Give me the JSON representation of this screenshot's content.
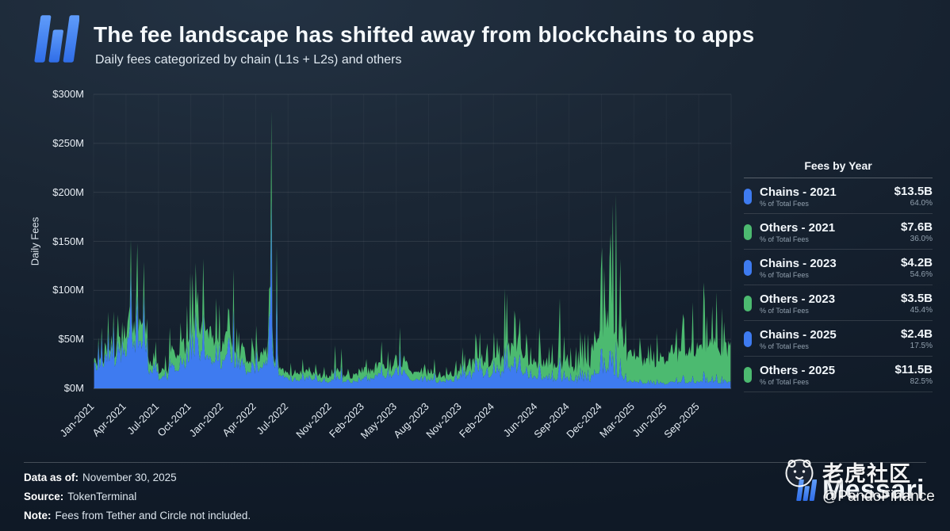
{
  "header": {
    "title": "The fee landscape has shifted away from blockchains to apps",
    "subtitle": "Daily fees categorized by chain (L1s + L2s) and others"
  },
  "colors": {
    "chains": "#3e7bf0",
    "others": "#4cba70"
  },
  "legend": {
    "title": "Fees by Year",
    "sub_label": "% of Total Fees",
    "rows": [
      {
        "label": "Chains - 2021",
        "color": "blue",
        "value": "$13.5B",
        "pct": "64.0%"
      },
      {
        "label": "Others - 2021",
        "color": "green",
        "value": "$7.6B",
        "pct": "36.0%"
      },
      {
        "label": "Chains - 2023",
        "color": "blue",
        "value": "$4.2B",
        "pct": "54.6%"
      },
      {
        "label": "Others - 2023",
        "color": "green",
        "value": "$3.5B",
        "pct": "45.4%"
      },
      {
        "label": "Chains - 2025",
        "color": "blue",
        "value": "$2.4B",
        "pct": "17.5%"
      },
      {
        "label": "Others - 2025",
        "color": "green",
        "value": "$11.5B",
        "pct": "82.5%"
      }
    ]
  },
  "footer": {
    "data_as_of_label": "Data as of:",
    "data_as_of": "November 30, 2025",
    "source_label": "Source:",
    "source": "TokenTerminal",
    "note_label": "Note:",
    "note": "Fees from Tether and Circle not included.",
    "brand": "Messari"
  },
  "watermark": {
    "name": "老虎社区",
    "handle": "@PandoFinance"
  },
  "chart_data": {
    "type": "area",
    "stacked": true,
    "title": "The fee landscape has shifted away from blockchains to apps",
    "subtitle": "Daily fees categorized by chain (L1s + L2s) and others",
    "ylabel": "Daily Fees",
    "xlabel": "",
    "ylim": [
      0,
      300
    ],
    "grid": true,
    "legend_position": "right",
    "series_names": [
      "Chains (L1s + L2s)",
      "Others (apps)"
    ],
    "y_ticks": [
      {
        "label": "$0M",
        "value": 0
      },
      {
        "label": "$50M",
        "value": 50
      },
      {
        "label": "$100M",
        "value": 100
      },
      {
        "label": "$150M",
        "value": 150
      },
      {
        "label": "$200M",
        "value": 200
      },
      {
        "label": "$250M",
        "value": 250
      },
      {
        "label": "$300M",
        "value": 300
      }
    ],
    "x_ticks": [
      {
        "label": "Jan-2021",
        "month": 0
      },
      {
        "label": "Apr-2021",
        "month": 3
      },
      {
        "label": "Jul-2021",
        "month": 6
      },
      {
        "label": "Oct-2021",
        "month": 9
      },
      {
        "label": "Jan-2022",
        "month": 12
      },
      {
        "label": "Apr-2022",
        "month": 15
      },
      {
        "label": "Jul-2022",
        "month": 18
      },
      {
        "label": "Nov-2022",
        "month": 22
      },
      {
        "label": "Feb-2023",
        "month": 25
      },
      {
        "label": "May-2023",
        "month": 28
      },
      {
        "label": "Aug-2023",
        "month": 31
      },
      {
        "label": "Nov-2023",
        "month": 34
      },
      {
        "label": "Feb-2024",
        "month": 37
      },
      {
        "label": "Jun-2024",
        "month": 41
      },
      {
        "label": "Sep-2024",
        "month": 44
      },
      {
        "label": "Dec-2024",
        "month": 47
      },
      {
        "label": "Mar-2025",
        "month": 50
      },
      {
        "label": "Jun-2025",
        "month": 53
      },
      {
        "label": "Sep-2025",
        "month": 56
      }
    ],
    "months_note": "Approximate daily-fee envelope per month, $M: b=typical low, p=monthly peak, f=chains share of total",
    "months": [
      {
        "m": "2021-01",
        "b": 25,
        "p": 62,
        "f": 0.78
      },
      {
        "m": "2021-02",
        "b": 38,
        "p": 78,
        "f": 0.76
      },
      {
        "m": "2021-03",
        "b": 42,
        "p": 68,
        "f": 0.72
      },
      {
        "m": "2021-04",
        "b": 60,
        "p": 152,
        "f": 0.7
      },
      {
        "m": "2021-05",
        "b": 65,
        "p": 148,
        "f": 0.68
      },
      {
        "m": "2021-06",
        "b": 22,
        "p": 48,
        "f": 0.62
      },
      {
        "m": "2021-07",
        "b": 17,
        "p": 34,
        "f": 0.58
      },
      {
        "m": "2021-08",
        "b": 32,
        "p": 62,
        "f": 0.55
      },
      {
        "m": "2021-09",
        "b": 42,
        "p": 118,
        "f": 0.55
      },
      {
        "m": "2021-10",
        "b": 55,
        "p": 128,
        "f": 0.55
      },
      {
        "m": "2021-11",
        "b": 58,
        "p": 132,
        "f": 0.52
      },
      {
        "m": "2021-12",
        "b": 45,
        "p": 92,
        "f": 0.55
      },
      {
        "m": "2022-01",
        "b": 50,
        "p": 122,
        "f": 0.58
      },
      {
        "m": "2022-02",
        "b": 34,
        "p": 62,
        "f": 0.58
      },
      {
        "m": "2022-03",
        "b": 30,
        "p": 52,
        "f": 0.58
      },
      {
        "m": "2022-04",
        "b": 34,
        "p": 64,
        "f": 0.6
      },
      {
        "m": "2022-05",
        "b": 28,
        "p": 283,
        "f": 0.72
      },
      {
        "m": "2022-06",
        "b": 18,
        "p": 36,
        "f": 0.6
      },
      {
        "m": "2022-07",
        "b": 14,
        "p": 26,
        "f": 0.55
      },
      {
        "m": "2022-08",
        "b": 16,
        "p": 30,
        "f": 0.55
      },
      {
        "m": "2022-09",
        "b": 13,
        "p": 25,
        "f": 0.55
      },
      {
        "m": "2022-10",
        "b": 12,
        "p": 22,
        "f": 0.52
      },
      {
        "m": "2022-11",
        "b": 16,
        "p": 44,
        "f": 0.55
      },
      {
        "m": "2022-12",
        "b": 12,
        "p": 20,
        "f": 0.52
      },
      {
        "m": "2023-01",
        "b": 13,
        "p": 22,
        "f": 0.5
      },
      {
        "m": "2023-02",
        "b": 17,
        "p": 30,
        "f": 0.52
      },
      {
        "m": "2023-03",
        "b": 21,
        "p": 48,
        "f": 0.56
      },
      {
        "m": "2023-04",
        "b": 19,
        "p": 38,
        "f": 0.55
      },
      {
        "m": "2023-05",
        "b": 24,
        "p": 62,
        "f": 0.58
      },
      {
        "m": "2023-06",
        "b": 15,
        "p": 26,
        "f": 0.54
      },
      {
        "m": "2023-07",
        "b": 14,
        "p": 25,
        "f": 0.52
      },
      {
        "m": "2023-08",
        "b": 13,
        "p": 30,
        "f": 0.52
      },
      {
        "m": "2023-09",
        "b": 12,
        "p": 22,
        "f": 0.52
      },
      {
        "m": "2023-10",
        "b": 14,
        "p": 26,
        "f": 0.54
      },
      {
        "m": "2023-11",
        "b": 20,
        "p": 42,
        "f": 0.56
      },
      {
        "m": "2023-12",
        "b": 26,
        "p": 56,
        "f": 0.56
      },
      {
        "m": "2024-01",
        "b": 24,
        "p": 46,
        "f": 0.5
      },
      {
        "m": "2024-02",
        "b": 27,
        "p": 52,
        "f": 0.48
      },
      {
        "m": "2024-03",
        "b": 38,
        "p": 102,
        "f": 0.46
      },
      {
        "m": "2024-04",
        "b": 32,
        "p": 72,
        "f": 0.45
      },
      {
        "m": "2024-05",
        "b": 26,
        "p": 56,
        "f": 0.42
      },
      {
        "m": "2024-06",
        "b": 24,
        "p": 62,
        "f": 0.4
      },
      {
        "m": "2024-07",
        "b": 21,
        "p": 46,
        "f": 0.38
      },
      {
        "m": "2024-08",
        "b": 23,
        "p": 92,
        "f": 0.36
      },
      {
        "m": "2024-09",
        "b": 19,
        "p": 42,
        "f": 0.35
      },
      {
        "m": "2024-10",
        "b": 24,
        "p": 56,
        "f": 0.33
      },
      {
        "m": "2024-11",
        "b": 42,
        "p": 122,
        "f": 0.3
      },
      {
        "m": "2024-12",
        "b": 55,
        "p": 158,
        "f": 0.26
      },
      {
        "m": "2025-01",
        "b": 50,
        "p": 198,
        "f": 0.22
      },
      {
        "m": "2025-02",
        "b": 33,
        "p": 72,
        "f": 0.2
      },
      {
        "m": "2025-03",
        "b": 27,
        "p": 52,
        "f": 0.19
      },
      {
        "m": "2025-04",
        "b": 23,
        "p": 46,
        "f": 0.18
      },
      {
        "m": "2025-05",
        "b": 27,
        "p": 56,
        "f": 0.17
      },
      {
        "m": "2025-06",
        "b": 27,
        "p": 62,
        "f": 0.17
      },
      {
        "m": "2025-07",
        "b": 33,
        "p": 76,
        "f": 0.16
      },
      {
        "m": "2025-08",
        "b": 38,
        "p": 88,
        "f": 0.15
      },
      {
        "m": "2025-09",
        "b": 43,
        "p": 108,
        "f": 0.15
      },
      {
        "m": "2025-10",
        "b": 43,
        "p": 98,
        "f": 0.14
      },
      {
        "m": "2025-11",
        "b": 38,
        "p": 82,
        "f": 0.15
      }
    ]
  }
}
